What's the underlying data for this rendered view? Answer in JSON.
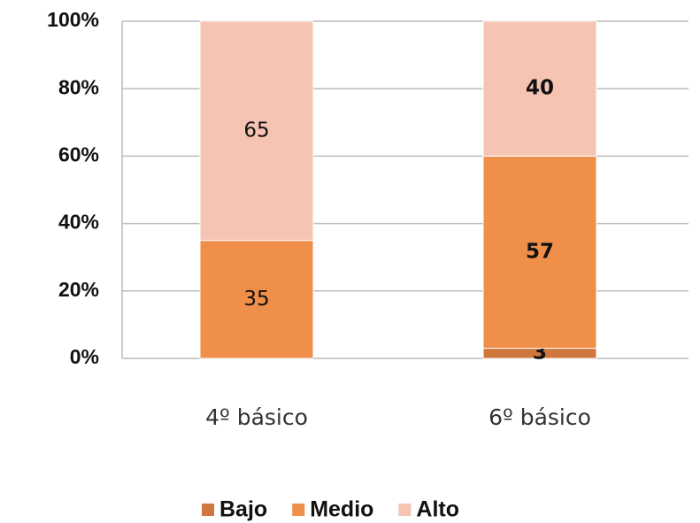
{
  "chart_data": {
    "type": "stacked_bar",
    "categories": [
      "4º básico",
      "6º básico"
    ],
    "series": [
      {
        "name": "Bajo",
        "color": "#d0773e",
        "values": [
          null,
          3
        ]
      },
      {
        "name": "Medio",
        "color": "#ef8f4a",
        "values": [
          35,
          57
        ]
      },
      {
        "name": "Alto",
        "color": "#f5c4b2",
        "values": [
          65,
          40
        ]
      }
    ],
    "ylim": [
      0,
      100
    ],
    "yticks": [
      {
        "value": 0,
        "label": "0%"
      },
      {
        "value": 20,
        "label": "20%"
      },
      {
        "value": 40,
        "label": "40%"
      },
      {
        "value": 60,
        "label": "60%"
      },
      {
        "value": 80,
        "label": "80%"
      },
      {
        "value": 100,
        "label": "100%"
      }
    ],
    "grid": true,
    "legend": "bottom"
  }
}
